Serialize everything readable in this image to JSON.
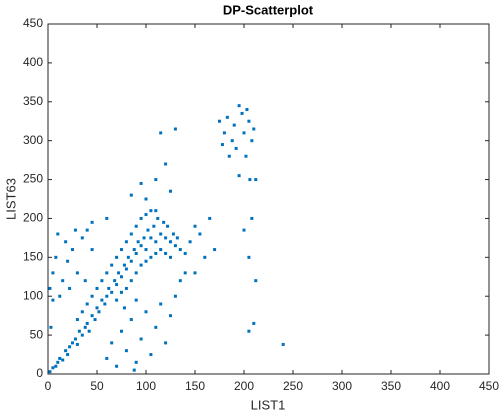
{
  "chart_data": {
    "type": "scatter",
    "title": "DP-Scatterplot",
    "x_label": "LIST1",
    "y_label": "LIST63",
    "xlim": [
      0,
      450
    ],
    "ylim": [
      0,
      450
    ],
    "xticks": [
      0,
      50,
      100,
      150,
      200,
      250,
      300,
      350,
      400,
      450
    ],
    "yticks": [
      0,
      50,
      100,
      150,
      200,
      250,
      300,
      350,
      400,
      450
    ],
    "series": [
      {
        "color": "#0072bd",
        "x": [
          2,
          5,
          8,
          10,
          12,
          15,
          18,
          20,
          22,
          25,
          28,
          30,
          32,
          35,
          38,
          40,
          42,
          45,
          48,
          50,
          52,
          55,
          58,
          60,
          62,
          65,
          68,
          70,
          72,
          75,
          78,
          80,
          82,
          85,
          88,
          90,
          92,
          95,
          98,
          100,
          102,
          105,
          108,
          110,
          112,
          115,
          118,
          120,
          122,
          125,
          128,
          130,
          132,
          135,
          60,
          65,
          70,
          75,
          80,
          85,
          90,
          95,
          100,
          105,
          110,
          80,
          85,
          90,
          95,
          100,
          105,
          110,
          115,
          120,
          125,
          70,
          75,
          50,
          55,
          45,
          40,
          35,
          30,
          2,
          5,
          8,
          10,
          15,
          18,
          20,
          25,
          28,
          30,
          35,
          38,
          3,
          5,
          12,
          22,
          40,
          45,
          60,
          65,
          70,
          75,
          80,
          85,
          90,
          95,
          100,
          105,
          110,
          115,
          120,
          125,
          90,
          78,
          130,
          135,
          140,
          88,
          140,
          145,
          150,
          155,
          160,
          165,
          170,
          150,
          100,
          110,
          120,
          115,
          130,
          125,
          85,
          95,
          45,
          60,
          175,
          180,
          183,
          188,
          190,
          192,
          195,
          198,
          200,
          202,
          205,
          208,
          210,
          185,
          178,
          203,
          206,
          212,
          200,
          208,
          205,
          212,
          240,
          210,
          205,
          195
        ],
        "y": [
          3,
          8,
          10,
          15,
          20,
          18,
          30,
          25,
          35,
          40,
          45,
          38,
          55,
          50,
          60,
          65,
          55,
          75,
          70,
          85,
          80,
          95,
          90,
          100,
          110,
          105,
          120,
          115,
          130,
          125,
          140,
          135,
          150,
          145,
          160,
          155,
          170,
          165,
          175,
          160,
          185,
          175,
          190,
          170,
          200,
          180,
          195,
          175,
          190,
          170,
          180,
          165,
          175,
          160,
          130,
          140,
          150,
          160,
          170,
          180,
          190,
          200,
          205,
          210,
          210,
          110,
          120,
          130,
          140,
          145,
          150,
          155,
          160,
          155,
          150,
          95,
          105,
          110,
          120,
          100,
          90,
          80,
          70,
          110,
          130,
          150,
          180,
          120,
          170,
          145,
          160,
          185,
          130,
          175,
          120,
          60,
          95,
          100,
          110,
          185,
          160,
          20,
          40,
          10,
          55,
          30,
          70,
          15,
          45,
          80,
          25,
          60,
          90,
          40,
          75,
          95,
          85,
          100,
          120,
          130,
          5,
          155,
          170,
          190,
          180,
          150,
          200,
          160,
          130,
          225,
          250,
          270,
          310,
          315,
          235,
          230,
          245,
          195,
          200,
          325,
          310,
          330,
          300,
          320,
          290,
          345,
          335,
          310,
          280,
          325,
          300,
          315,
          280,
          295,
          340,
          250,
          250,
          185,
          200,
          150,
          120,
          38,
          65,
          55,
          255
        ]
      }
    ]
  }
}
